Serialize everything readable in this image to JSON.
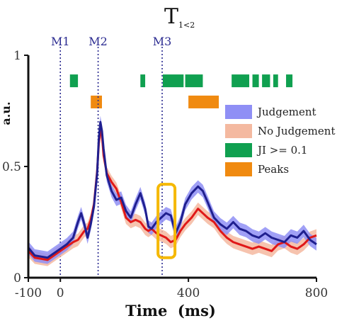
{
  "chart_data": {
    "type": "line",
    "title_main": "T",
    "title_sub": "1<2",
    "xlabel": "Time  (ms)",
    "ylabel": "a.u.",
    "xlim": [
      -100,
      800
    ],
    "ylim": [
      0,
      1
    ],
    "x_ticks": [
      {
        "value": -100,
        "label": "-100"
      },
      {
        "value": 0,
        "label": "0"
      },
      {
        "value": 400,
        "label": "400"
      },
      {
        "value": 800,
        "label": "800"
      }
    ],
    "y_ticks": [
      {
        "value": 0,
        "label": "0"
      },
      {
        "value": 0.5,
        "label": "0.5"
      },
      {
        "value": 1,
        "label": "1"
      }
    ],
    "markers": [
      {
        "label": "M1",
        "x": 0
      },
      {
        "label": "M2",
        "x": 118
      },
      {
        "label": "M3",
        "x": 318
      }
    ],
    "series": [
      {
        "name": "Judgement",
        "color": "#1f1f8f",
        "band_color": "#8f8ff5",
        "x": [
          -100,
          -80,
          -60,
          -40,
          -20,
          0,
          20,
          40,
          55,
          65,
          75,
          85,
          95,
          105,
          115,
          120,
          125,
          130,
          135,
          145,
          160,
          175,
          190,
          205,
          220,
          235,
          250,
          265,
          275,
          285,
          300,
          315,
          330,
          345,
          360,
          375,
          390,
          410,
          430,
          445,
          460,
          480,
          500,
          520,
          540,
          560,
          580,
          600,
          620,
          640,
          660,
          680,
          700,
          720,
          740,
          760,
          780,
          800
        ],
        "y": [
          0.135,
          0.1,
          0.095,
          0.09,
          0.11,
          0.13,
          0.15,
          0.18,
          0.25,
          0.29,
          0.24,
          0.18,
          0.24,
          0.32,
          0.47,
          0.62,
          0.7,
          0.66,
          0.58,
          0.46,
          0.39,
          0.35,
          0.36,
          0.3,
          0.27,
          0.33,
          0.38,
          0.31,
          0.23,
          0.22,
          0.25,
          0.27,
          0.29,
          0.28,
          0.2,
          0.25,
          0.33,
          0.38,
          0.41,
          0.39,
          0.34,
          0.27,
          0.24,
          0.22,
          0.25,
          0.22,
          0.21,
          0.19,
          0.18,
          0.2,
          0.18,
          0.17,
          0.16,
          0.19,
          0.18,
          0.21,
          0.17,
          0.15
        ],
        "band": 0.028
      },
      {
        "name": "No Judgement",
        "color": "#e01818",
        "band_color": "#f4b9a0",
        "x": [
          -100,
          -80,
          -60,
          -40,
          -20,
          0,
          20,
          40,
          55,
          65,
          75,
          85,
          95,
          105,
          115,
          120,
          125,
          130,
          135,
          145,
          160,
          175,
          190,
          205,
          220,
          235,
          250,
          265,
          275,
          285,
          300,
          315,
          330,
          345,
          360,
          375,
          390,
          410,
          430,
          445,
          460,
          480,
          500,
          520,
          540,
          560,
          580,
          600,
          620,
          640,
          660,
          680,
          700,
          720,
          740,
          760,
          780,
          800
        ],
        "y": [
          0.12,
          0.09,
          0.085,
          0.08,
          0.1,
          0.12,
          0.14,
          0.16,
          0.17,
          0.19,
          0.21,
          0.22,
          0.26,
          0.33,
          0.48,
          0.6,
          0.66,
          0.64,
          0.55,
          0.47,
          0.43,
          0.4,
          0.34,
          0.27,
          0.25,
          0.26,
          0.25,
          0.22,
          0.21,
          0.22,
          0.2,
          0.19,
          0.18,
          0.16,
          0.17,
          0.21,
          0.24,
          0.27,
          0.31,
          0.29,
          0.27,
          0.25,
          0.21,
          0.18,
          0.16,
          0.15,
          0.14,
          0.13,
          0.14,
          0.13,
          0.12,
          0.15,
          0.16,
          0.14,
          0.13,
          0.15,
          0.18,
          0.19
        ],
        "band": 0.028
      }
    ],
    "indicators": [
      {
        "name": "JI >= 0.1",
        "color": "#10a050",
        "y": 0.885,
        "intervals": [
          [
            30,
            55
          ],
          [
            250,
            265
          ],
          [
            320,
            385
          ],
          [
            390,
            445
          ],
          [
            535,
            590
          ],
          [
            600,
            620
          ],
          [
            630,
            655
          ],
          [
            665,
            680
          ],
          [
            705,
            725
          ]
        ]
      },
      {
        "name": "Peaks",
        "color": "#f08a10",
        "y": 0.79,
        "intervals": [
          [
            95,
            130
          ],
          [
            400,
            495
          ]
        ]
      }
    ],
    "legend": {
      "placement": "right",
      "entries": [
        {
          "label": "Judgement",
          "color": "#8f8ff5"
        },
        {
          "label": "No Judgement",
          "color": "#f4b9a0"
        },
        {
          "label": "JI >= 0.1",
          "color": "#10a050"
        },
        {
          "label": "Peaks",
          "color": "#f08a10"
        }
      ]
    },
    "highlight": {
      "x_range": [
        305,
        358
      ],
      "y_range": [
        0.09,
        0.42
      ],
      "color": "#f5b800"
    }
  }
}
